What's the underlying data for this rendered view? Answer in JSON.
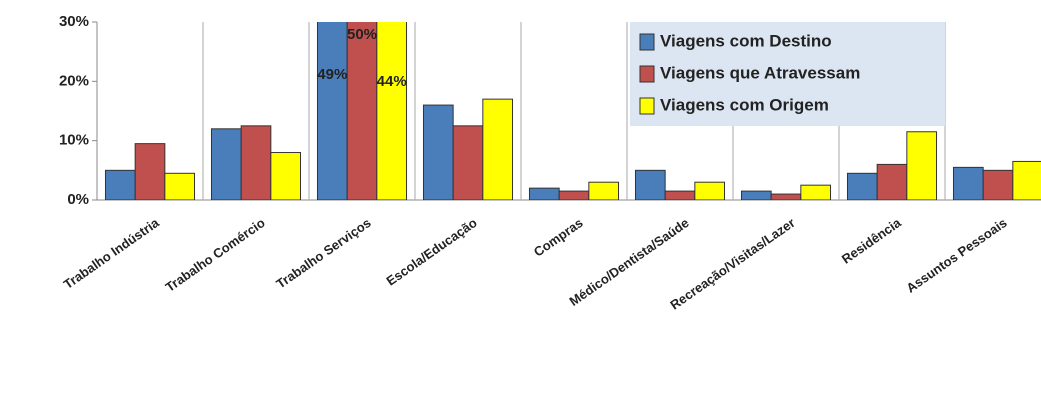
{
  "chart_data": {
    "type": "bar",
    "categories": [
      "Trabalho Indústria",
      "Trabalho Comércio",
      "Trabalho Serviços",
      "Escola/Educação",
      "Compras",
      "Médico/Dentista/Saúde",
      "Recreação/Visitas/Lazer",
      "Residência",
      "Assuntos Pessoais"
    ],
    "series": [
      {
        "name": "Viagens com Destino",
        "color": "#4a7ebb",
        "values": [
          5,
          12,
          49,
          16,
          2,
          5,
          1.5,
          4.5,
          5.5
        ],
        "value_labels": [
          null,
          null,
          "49%",
          null,
          null,
          null,
          null,
          null,
          null
        ]
      },
      {
        "name": "Viagens que Atravessam",
        "color": "#c0504d",
        "values": [
          9.5,
          12.5,
          50,
          12.5,
          1.5,
          1.5,
          1,
          6,
          5
        ],
        "value_labels": [
          null,
          null,
          "50%",
          null,
          null,
          null,
          null,
          null,
          null
        ]
      },
      {
        "name": "Viagens com Origem",
        "color": "#ffff00",
        "values": [
          4.5,
          8,
          44,
          17,
          3,
          3,
          2.5,
          11.5,
          6.5
        ],
        "value_labels": [
          null,
          null,
          "44%",
          null,
          null,
          null,
          null,
          null,
          null
        ]
      }
    ],
    "ylim": [
      0,
      30
    ],
    "yticks": [
      {
        "value": 0,
        "label": "0%"
      },
      {
        "value": 10,
        "label": "10%"
      },
      {
        "value": 20,
        "label": "20%"
      },
      {
        "value": 30,
        "label": "30%"
      }
    ],
    "legend": "top-right"
  }
}
